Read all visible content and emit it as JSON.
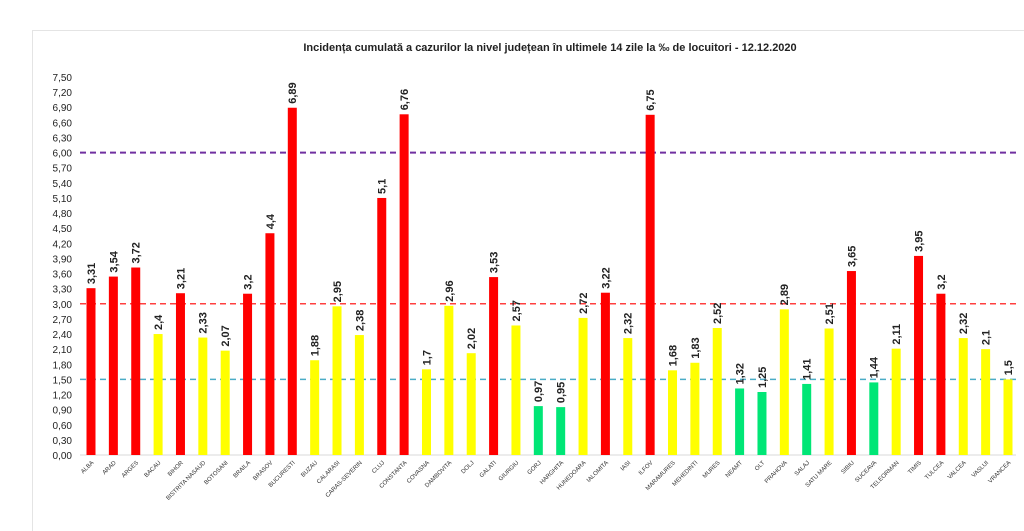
{
  "chart_data": {
    "type": "bar",
    "title": "Incidența cumulată a cazurilor la nivel județean în ultimele 14 zile   la ‰ de locuitori  - 12.12.2020",
    "xlabel": "",
    "ylabel": "",
    "ylim": [
      0,
      7.5
    ],
    "ytick_step": 0.3,
    "grid": false,
    "decimal_separator": ",",
    "categories": [
      "ALBA",
      "ARAD",
      "ARGES",
      "BACAU",
      "BIHOR",
      "BISTRITA NASAUD",
      "BOTOSANI",
      "BRAILA",
      "BRASOV",
      "BUCURESTI",
      "BUZAU",
      "CALARASI",
      "CARAS-SEVERIN",
      "CLUJ",
      "CONSTANTA",
      "COVASNA",
      "DAMBOVITA",
      "DOLJ",
      "GALATI",
      "GIURGIU",
      "GORJ",
      "HARGHITA",
      "HUNEDOARA",
      "IALOMITA",
      "IASI",
      "ILFOV",
      "MARAMURES",
      "MEHEDINTI",
      "MURES",
      "NEAMT",
      "OLT",
      "PRAHOVA",
      "SALAJ",
      "SATU MARE",
      "SIBIU",
      "SUCEAVA",
      "TELEORMAN",
      "TIMIS",
      "TULCEA",
      "VALCEA",
      "VASLUI",
      "VRANCEA"
    ],
    "values": [
      3.31,
      3.54,
      3.72,
      2.4,
      3.21,
      2.33,
      2.07,
      3.2,
      4.4,
      6.89,
      1.88,
      2.95,
      2.38,
      5.1,
      6.76,
      1.7,
      2.96,
      2.02,
      3.53,
      2.57,
      0.97,
      0.95,
      2.72,
      3.22,
      2.32,
      6.75,
      1.68,
      1.83,
      2.52,
      1.32,
      1.25,
      2.89,
      1.41,
      2.51,
      3.65,
      1.44,
      2.11,
      3.95,
      3.2,
      2.32,
      2.1,
      1.5
    ],
    "color_thresholds": {
      "red_above": 3.0,
      "yellow_from": 1.5,
      "green_below": 1.5
    },
    "colors": {
      "red": "#ff0000",
      "yellow": "#ffff00",
      "green": "#00e676"
    },
    "reference_lines": [
      {
        "value": 6.0,
        "color": "#7030a0",
        "style": "dashed"
      },
      {
        "value": 3.0,
        "color": "#ff4040",
        "style": "dashed"
      },
      {
        "value": 1.5,
        "color": "#4bacc6",
        "style": "dashed"
      }
    ]
  }
}
